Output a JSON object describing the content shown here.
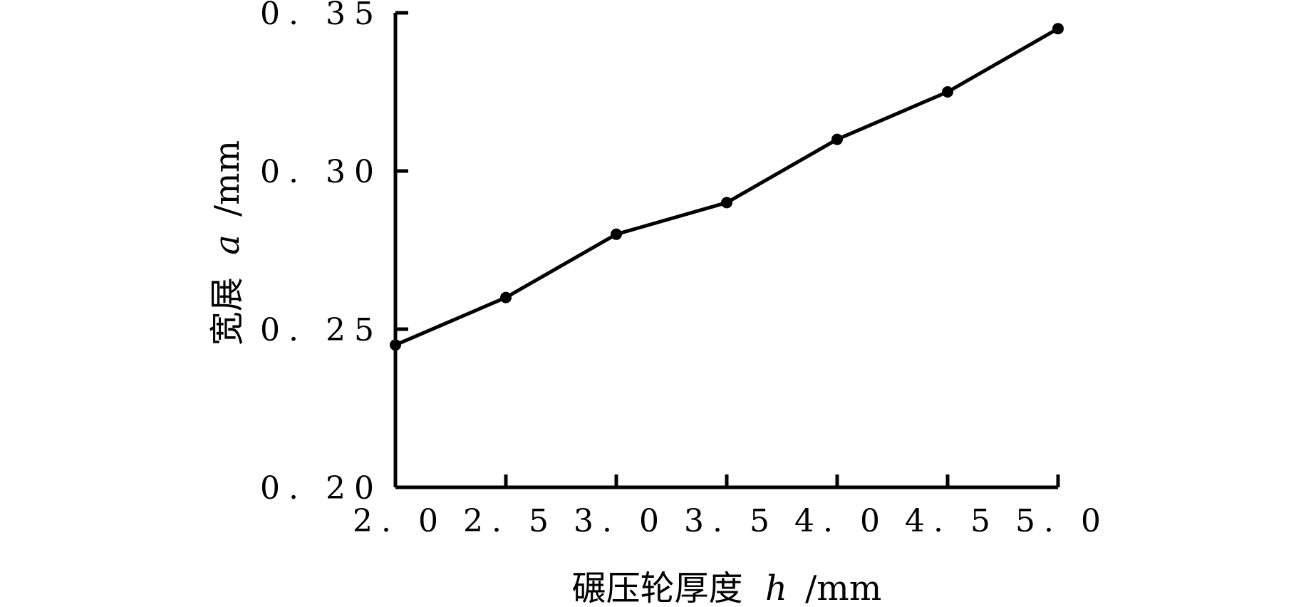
{
  "chart_data": {
    "type": "line",
    "x": [
      2.0,
      2.5,
      3.0,
      3.5,
      4.0,
      4.5,
      5.0
    ],
    "x_tick_labels": [
      "2. 0",
      "2. 5",
      "3. 0",
      "3. 5",
      "4. 0",
      "4. 5",
      "5. 0"
    ],
    "y_ticks": [
      0.2,
      0.25,
      0.3,
      0.35
    ],
    "y_tick_labels": [
      "0. 20",
      "0. 25",
      "0. 30",
      "0. 35"
    ],
    "series": [
      {
        "values": [
          0.245,
          0.26,
          0.28,
          0.29,
          0.31,
          0.325,
          0.345
        ]
      }
    ],
    "xlim": [
      2.0,
      5.0
    ],
    "ylim": [
      0.2,
      0.35
    ],
    "xlabel": {
      "prefix": "碾压轮厚度",
      "variable": "h",
      "unit": "/mm"
    },
    "ylabel": {
      "prefix": "宽展",
      "variable": "a",
      "unit": "/mm"
    },
    "grid": false,
    "line_color": "#000000",
    "marker_color": "#000000"
  }
}
